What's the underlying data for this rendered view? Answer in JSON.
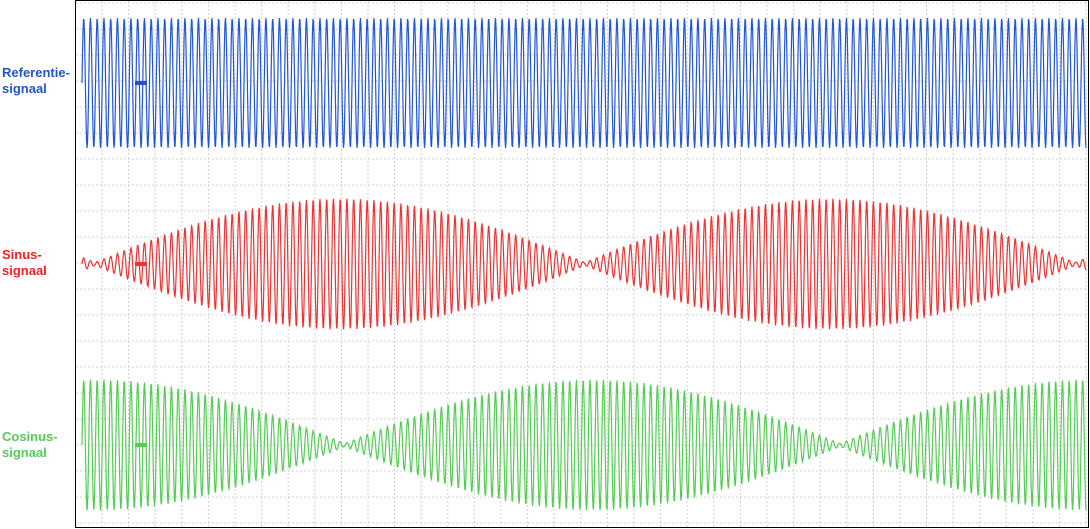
{
  "signals": [
    {
      "lines": [
        "Referentie-",
        "signaal"
      ]
    },
    {
      "lines": [
        "Sinus-",
        "signaal"
      ]
    },
    {
      "lines": [
        "Cosinus-",
        "signaal"
      ]
    }
  ]
}
